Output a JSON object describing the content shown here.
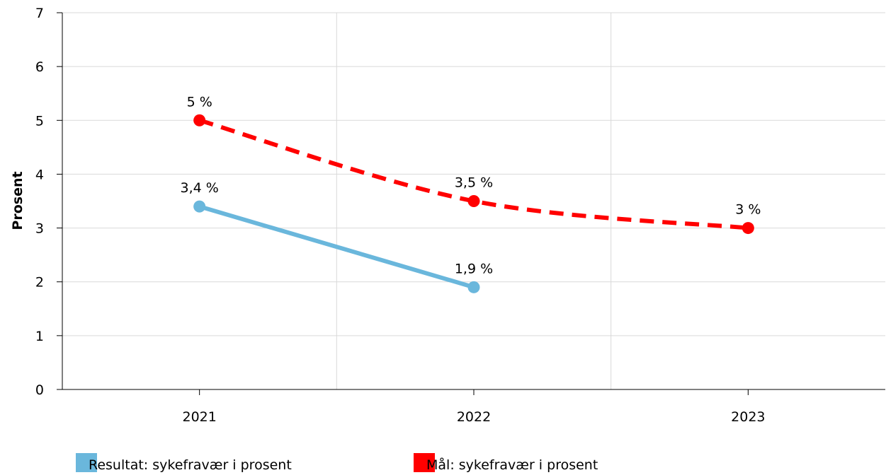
{
  "chart_data": {
    "type": "line",
    "title": "",
    "xlabel": "",
    "ylabel": "Prosent",
    "categories": [
      "2021",
      "2022",
      "2023"
    ],
    "ylim": [
      0,
      7
    ],
    "yticks": [
      "0",
      "1",
      "2",
      "3",
      "4",
      "5",
      "6",
      "7"
    ],
    "grid": true,
    "legend_position": "bottom",
    "series": [
      {
        "name": "Resultat: sykefravær i prosent",
        "values": [
          3.4,
          1.9,
          null
        ],
        "labels": [
          "3,4 %",
          "1,9 %",
          ""
        ],
        "color": "#6ab7dc",
        "style": "solid"
      },
      {
        "name": "Mål: sykefravær i prosent",
        "values": [
          5,
          3.5,
          3
        ],
        "labels": [
          "5 %",
          "3,5 %",
          "3 %"
        ],
        "color": "#ff0000",
        "style": "dashed"
      }
    ]
  }
}
